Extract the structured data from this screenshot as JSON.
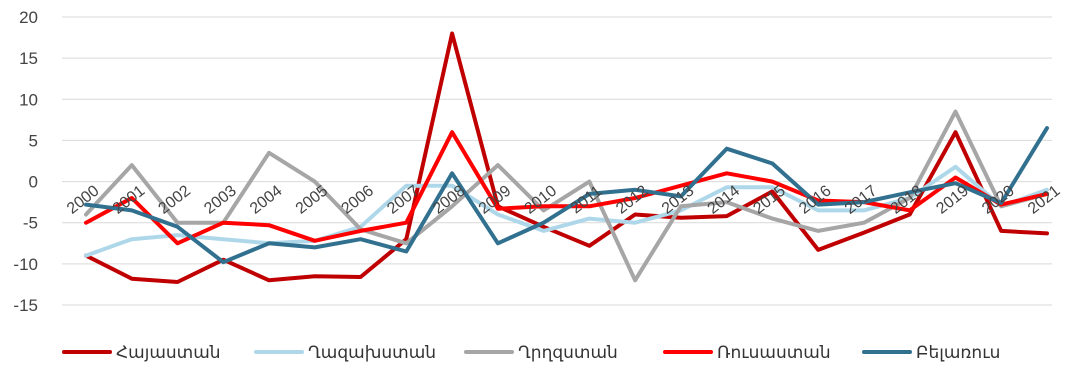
{
  "chart_data": {
    "type": "line",
    "title": "",
    "xlabel": "",
    "ylabel": "",
    "ylim": [
      -15,
      20
    ],
    "yticks": [
      -15,
      -10,
      -5,
      0,
      5,
      10,
      15,
      20
    ],
    "grid": "horizontal",
    "legend_position": "bottom",
    "x": [
      "2000",
      "2001",
      "2002",
      "2003",
      "2004",
      "2005",
      "2006",
      "2007",
      "2008",
      "2009",
      "2010",
      "2011",
      "2012",
      "2013",
      "2014",
      "2015",
      "2016",
      "2017",
      "2018",
      "2019",
      "2020",
      "2021"
    ],
    "series": [
      {
        "name": "Հայաստան",
        "color": "#c00000",
        "values": [
          -9,
          -11.8,
          -12.2,
          -9.5,
          -12,
          -11.5,
          -11.6,
          -7,
          18,
          -3,
          -5.5,
          -7.8,
          -4,
          -4.4,
          -4.2,
          -1.2,
          -8.3,
          -6.2,
          -4,
          6,
          -6,
          -6.3
        ]
      },
      {
        "name": "Ղազախստան",
        "color": "#aed8ea",
        "values": [
          -9,
          -7,
          -6.5,
          -7,
          -7.5,
          -7.2,
          -5.5,
          -0.5,
          -0.5,
          -4,
          -6,
          -4.5,
          -5,
          -3.5,
          -0.7,
          -0.7,
          -3.5,
          -3.5,
          -2,
          1.8,
          -3,
          -1
        ]
      },
      {
        "name": "Ղրղզստան",
        "color": "#a6a6a6",
        "values": [
          -4,
          2,
          -5,
          -5,
          3.5,
          0,
          -5.8,
          -7.5,
          -3,
          2,
          -3.5,
          0,
          -12,
          -3,
          -2.5,
          -4.5,
          -6,
          -5,
          -2,
          8.5,
          -3,
          -1.5
        ]
      },
      {
        "name": "Ռուսաստան",
        "color": "#ff0000",
        "values": [
          -5,
          -2,
          -7.5,
          -5,
          -5.3,
          -7.2,
          -6,
          -5,
          6,
          -3.3,
          -3,
          -3,
          -2,
          -0.5,
          1,
          0,
          -2.3,
          -2.5,
          -3.5,
          0.5,
          -2.8,
          -1.5
        ]
      },
      {
        "name": "Բելառուս",
        "color": "#31708f",
        "values": [
          -2.8,
          -3.5,
          -5.5,
          -9.8,
          -7.5,
          -8,
          -7,
          -8.5,
          1,
          -7.5,
          -5,
          -1.5,
          -1,
          -1.8,
          4,
          2.2,
          -2.8,
          -2.5,
          -1.3,
          -0.2,
          -2.6,
          6.5
        ]
      }
    ]
  }
}
